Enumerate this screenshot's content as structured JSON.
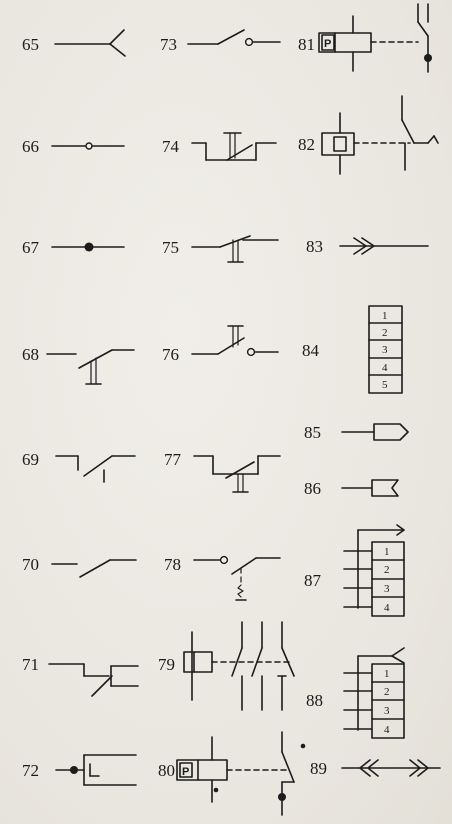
{
  "symbols": [
    {
      "id": "65",
      "label": "65"
    },
    {
      "id": "66",
      "label": "66"
    },
    {
      "id": "67",
      "label": "67"
    },
    {
      "id": "68",
      "label": "68"
    },
    {
      "id": "69",
      "label": "69"
    },
    {
      "id": "70",
      "label": "70"
    },
    {
      "id": "71",
      "label": "71"
    },
    {
      "id": "72",
      "label": "72"
    },
    {
      "id": "73",
      "label": "73"
    },
    {
      "id": "74",
      "label": "74"
    },
    {
      "id": "75",
      "label": "75"
    },
    {
      "id": "76",
      "label": "76"
    },
    {
      "id": "77",
      "label": "77"
    },
    {
      "id": "78",
      "label": "78"
    },
    {
      "id": "79",
      "label": "79"
    },
    {
      "id": "80",
      "label": "80"
    },
    {
      "id": "81",
      "label": "81"
    },
    {
      "id": "82",
      "label": "82"
    },
    {
      "id": "83",
      "label": "83"
    },
    {
      "id": "84",
      "label": "84"
    },
    {
      "id": "85",
      "label": "85"
    },
    {
      "id": "86",
      "label": "86"
    },
    {
      "id": "87",
      "label": "87"
    },
    {
      "id": "88",
      "label": "88"
    },
    {
      "id": "89",
      "label": "89"
    }
  ],
  "relay_letter": "P",
  "box84": [
    "1",
    "2",
    "3",
    "4",
    "5"
  ],
  "box87": [
    "1",
    "2",
    "3",
    "4"
  ],
  "box88": [
    "1",
    "2",
    "3",
    "4"
  ]
}
